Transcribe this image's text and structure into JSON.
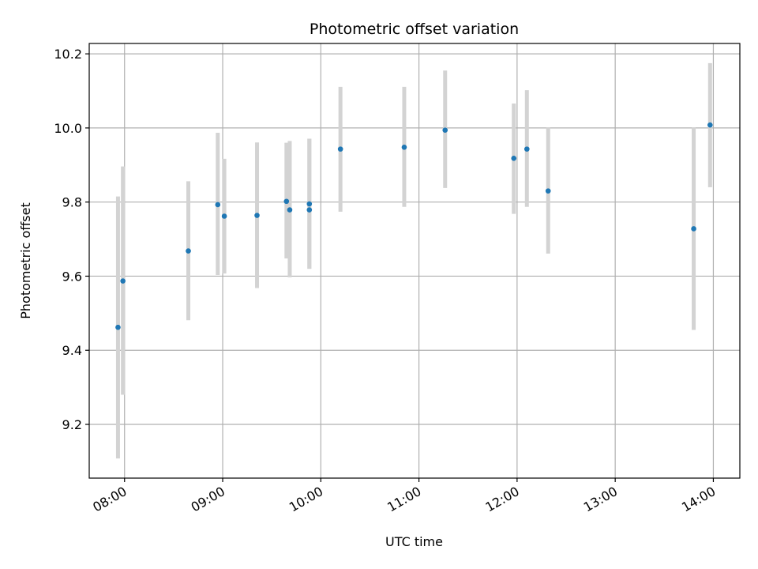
{
  "chart_data": {
    "type": "scatter",
    "title": "Photometric offset variation",
    "xlabel": "UTC time",
    "ylabel": "Photometric offset",
    "x_ticks": [
      "08:00",
      "09:00",
      "10:00",
      "11:00",
      "12:00",
      "13:00",
      "14:00"
    ],
    "y_ticks": [
      "9.2",
      "9.4",
      "9.6",
      "9.8",
      "10.0",
      "10.2"
    ],
    "x_range_hours": [
      7.64,
      14.27
    ],
    "ylim": [
      9.055,
      10.228
    ],
    "grid": true,
    "marker_color": "#1f77b4",
    "errorbar_color": "#d3d3d3",
    "points": [
      {
        "time": "07:56",
        "y": 9.462,
        "ylow": 9.108,
        "yhigh": 9.815
      },
      {
        "time": "07:59",
        "y": 9.587,
        "ylow": 9.28,
        "yhigh": 9.896
      },
      {
        "time": "08:39",
        "y": 9.668,
        "ylow": 9.481,
        "yhigh": 9.856
      },
      {
        "time": "08:57",
        "y": 9.793,
        "ylow": 9.603,
        "yhigh": 9.987
      },
      {
        "time": "09:01",
        "y": 9.762,
        "ylow": 9.607,
        "yhigh": 9.917
      },
      {
        "time": "09:21",
        "y": 9.764,
        "ylow": 9.568,
        "yhigh": 9.961
      },
      {
        "time": "09:39",
        "y": 9.802,
        "ylow": 9.648,
        "yhigh": 9.96
      },
      {
        "time": "09:41",
        "y": 9.779,
        "ylow": 9.597,
        "yhigh": 9.965
      },
      {
        "time": "09:53",
        "y": 9.779,
        "ylow": 9.62,
        "yhigh": 9.971
      },
      {
        "time": "09:53",
        "y": 9.795,
        "ylow": 9.62,
        "yhigh": 9.971
      },
      {
        "time": "10:12",
        "y": 9.943,
        "ylow": 9.774,
        "yhigh": 10.111
      },
      {
        "time": "10:51",
        "y": 9.948,
        "ylow": 9.787,
        "yhigh": 10.111
      },
      {
        "time": "11:16",
        "y": 9.994,
        "ylow": 9.838,
        "yhigh": 10.155
      },
      {
        "time": "11:58",
        "y": 9.918,
        "ylow": 9.768,
        "yhigh": 10.066
      },
      {
        "time": "12:06",
        "y": 9.943,
        "ylow": 9.787,
        "yhigh": 10.102
      },
      {
        "time": "12:19",
        "y": 9.83,
        "ylow": 9.661,
        "yhigh": 10.002
      },
      {
        "time": "13:48",
        "y": 9.728,
        "ylow": 9.455,
        "yhigh": 10.002
      },
      {
        "time": "13:58",
        "y": 10.008,
        "ylow": 9.84,
        "yhigh": 10.175
      }
    ]
  }
}
